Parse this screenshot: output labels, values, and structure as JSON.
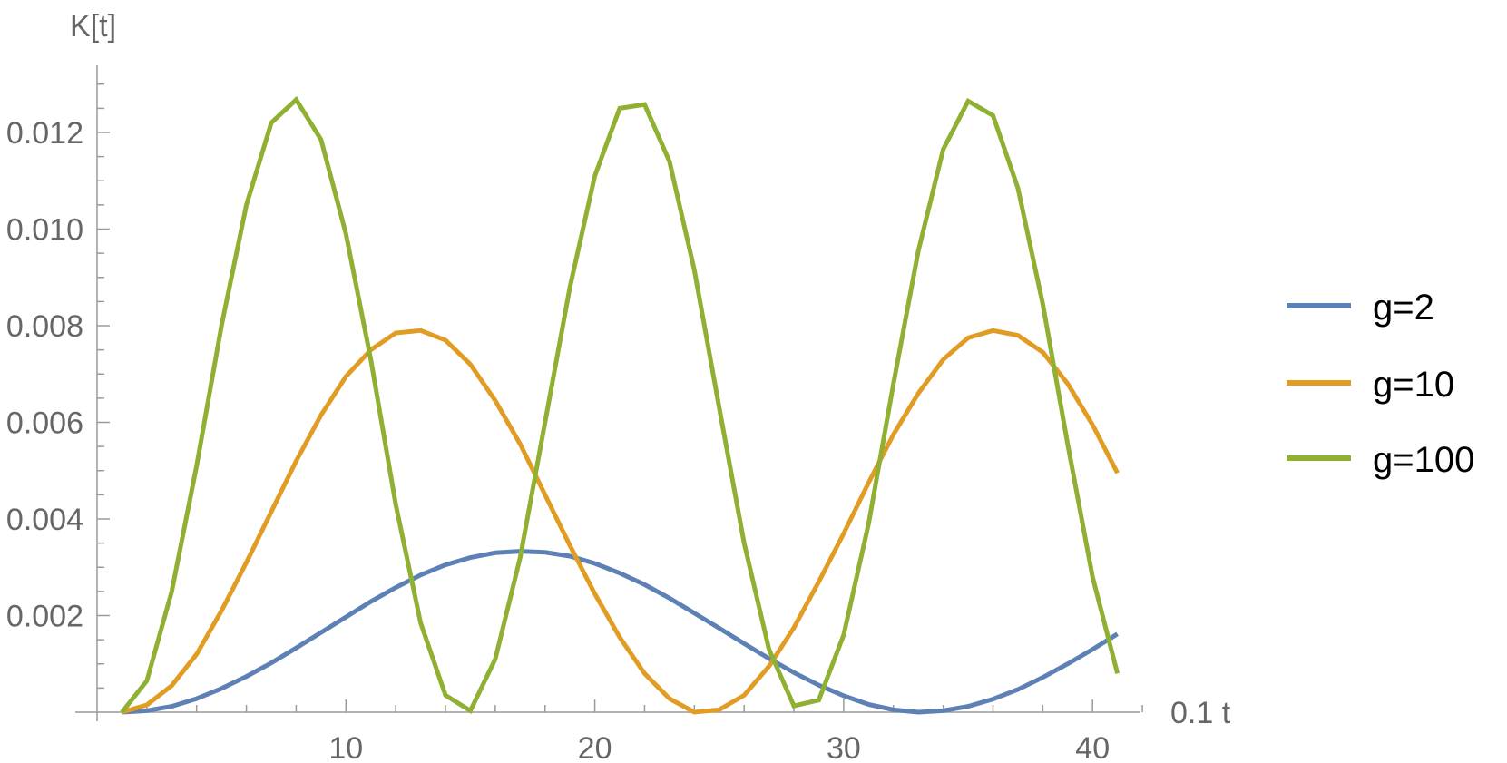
{
  "chart_data": {
    "type": "line",
    "title": "",
    "ylabel": "K[t]",
    "xlabel": "0.1 t",
    "xlim": [
      0,
      42
    ],
    "ylim": [
      0,
      0.0133
    ],
    "x_ticks": [
      10,
      20,
      30,
      40
    ],
    "x_tick_labels": [
      "10",
      "20",
      "30",
      "40"
    ],
    "y_ticks": [
      0.002,
      0.004,
      0.006,
      0.008,
      0.01,
      0.012
    ],
    "y_tick_labels": [
      "0.002",
      "0.004",
      "0.006",
      "0.008",
      "0.010",
      "0.012"
    ],
    "grid": false,
    "legend_position": "right",
    "x": [
      1,
      2,
      3,
      4,
      5,
      6,
      7,
      8,
      9,
      10,
      11,
      12,
      13,
      14,
      15,
      16,
      17,
      18,
      19,
      20,
      21,
      22,
      23,
      24,
      25,
      26,
      27,
      28,
      29,
      30,
      31,
      32,
      33,
      34,
      35,
      36,
      37,
      38,
      39,
      40,
      41
    ],
    "series": [
      {
        "name": "g=2",
        "color": "#5E81B5",
        "values": [
          0,
          3e-05,
          0.00012,
          0.00028,
          0.00049,
          0.00074,
          0.00102,
          0.00133,
          0.00165,
          0.00197,
          0.00229,
          0.00258,
          0.00284,
          0.00305,
          0.0032,
          0.0033,
          0.00333,
          0.00331,
          0.00323,
          0.00308,
          0.00288,
          0.00264,
          0.00236,
          0.00205,
          0.00174,
          0.00142,
          0.00111,
          0.00082,
          0.00056,
          0.00034,
          0.00016,
          5e-05,
          0.0,
          3e-05,
          0.00012,
          0.00027,
          0.00047,
          0.00072,
          0.001,
          0.0013,
          0.00162
        ]
      },
      {
        "name": "g=10",
        "color": "#E19C24",
        "values": [
          0,
          0.00015,
          0.00055,
          0.0012,
          0.0021,
          0.0031,
          0.00415,
          0.0052,
          0.00615,
          0.00695,
          0.0075,
          0.00785,
          0.0079,
          0.0077,
          0.0072,
          0.00645,
          0.00555,
          0.0045,
          0.00345,
          0.00245,
          0.00155,
          0.0008,
          0.00028,
          0.0,
          5e-05,
          0.00035,
          0.00095,
          0.00175,
          0.0027,
          0.0037,
          0.00475,
          0.00575,
          0.0066,
          0.0073,
          0.00775,
          0.0079,
          0.0078,
          0.00745,
          0.0068,
          0.00595,
          0.00495
        ]
      },
      {
        "name": "g=100",
        "color": "#8FB032",
        "values": [
          0,
          0.00065,
          0.0025,
          0.0051,
          0.008,
          0.0105,
          0.0122,
          0.01268,
          0.01185,
          0.0099,
          0.0073,
          0.0043,
          0.00185,
          0.00035,
          3e-05,
          0.0011,
          0.0032,
          0.006,
          0.0088,
          0.0111,
          0.0125,
          0.01258,
          0.0114,
          0.00915,
          0.0063,
          0.0035,
          0.0013,
          0.00013,
          0.00025,
          0.0016,
          0.0039,
          0.0068,
          0.00955,
          0.01165,
          0.01265,
          0.01235,
          0.01085,
          0.00845,
          0.00555,
          0.0028,
          0.0008
        ]
      }
    ]
  }
}
